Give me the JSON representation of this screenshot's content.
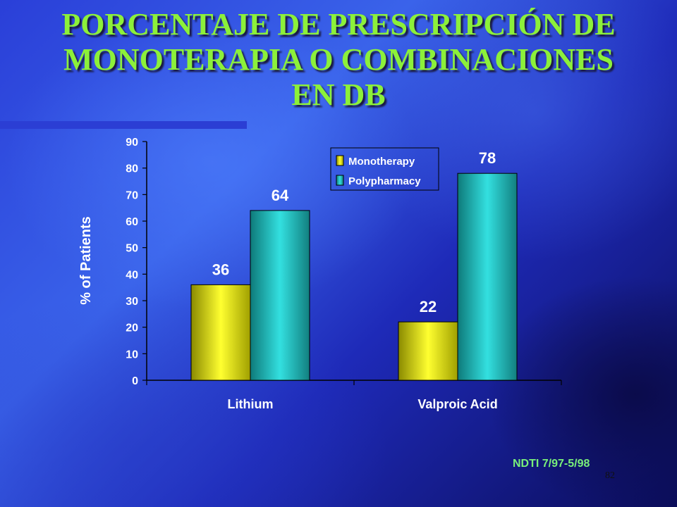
{
  "slide": {
    "title_lines": [
      "PORCENTAJE DE PRESCRIPCIÓN DE",
      "MONOTERAPIA O COMBINACIONES",
      "EN DB"
    ],
    "source_note": "NDTI 7/97-5/98",
    "slide_number": "82"
  },
  "colors": {
    "title": "#8cf03a",
    "monotherapy": "#e8e800",
    "polypharmacy": "#20c0c0",
    "axis_text": "#ffffff",
    "source_note": "#79f07a"
  },
  "chart_data": {
    "type": "bar",
    "categories": [
      "Lithium",
      "Valproic Acid"
    ],
    "series": [
      {
        "name": "Monotherapy",
        "values": [
          36,
          22
        ]
      },
      {
        "name": "Polypharmacy",
        "values": [
          64,
          78
        ]
      }
    ],
    "ylabel": "% of Patients",
    "xlabel": "",
    "ylim": [
      0,
      90
    ],
    "yticks": [
      0,
      10,
      20,
      30,
      40,
      50,
      60,
      70,
      80,
      90
    ],
    "legend_position": "top-right",
    "grid": false,
    "data_labels": true
  }
}
